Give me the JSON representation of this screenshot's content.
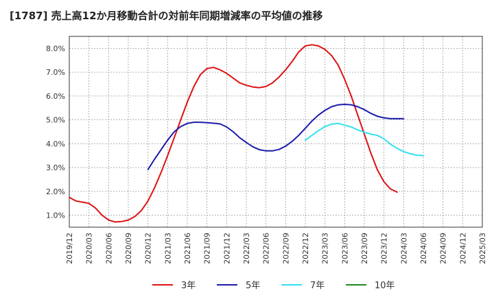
{
  "chart_data": {
    "type": "line",
    "title": "[1787]  売上高12か月移動合計の対前年同期増減率の平均値の推移",
    "xlabel": "",
    "ylabel": "",
    "ylim": [
      0.5,
      8.5
    ],
    "x_ticks": [
      "2019/12",
      "2020/03",
      "2020/06",
      "2020/09",
      "2020/12",
      "2021/03",
      "2021/06",
      "2021/09",
      "2021/12",
      "2022/03",
      "2022/06",
      "2022/09",
      "2022/12",
      "2023/03",
      "2023/06",
      "2023/09",
      "2023/12",
      "2024/03",
      "2024/06",
      "2024/09",
      "2024/12",
      "2025/03"
    ],
    "y_ticks": [
      "1.0%",
      "2.0%",
      "3.0%",
      "4.0%",
      "5.0%",
      "6.0%",
      "7.0%",
      "8.0%"
    ],
    "y_tick_values": [
      1,
      2,
      3,
      4,
      5,
      6,
      7,
      8
    ],
    "grid": true,
    "legend_position": "bottom",
    "series": [
      {
        "name": "3年",
        "color": "#dd1111",
        "start_index": 0,
        "values": [
          1.75,
          1.6,
          1.55,
          1.5,
          1.3,
          1.0,
          0.8,
          0.72,
          0.74,
          0.8,
          0.95,
          1.2,
          1.6,
          2.15,
          2.8,
          3.5,
          4.25,
          5.0,
          5.75,
          6.4,
          6.9,
          7.15,
          7.2,
          7.1,
          6.95,
          6.75,
          6.55,
          6.45,
          6.38,
          6.35,
          6.4,
          6.55,
          6.8,
          7.1,
          7.45,
          7.85,
          8.1,
          8.15,
          8.1,
          7.95,
          7.7,
          7.3,
          6.7,
          6.0,
          5.2,
          4.4,
          3.6,
          2.9,
          2.4,
          2.1,
          1.97
        ]
      },
      {
        "name": "5年",
        "color": "#1a1aaa",
        "start_index": 12,
        "values": [
          2.92,
          3.35,
          3.75,
          4.15,
          4.5,
          4.72,
          4.85,
          4.9,
          4.9,
          4.88,
          4.86,
          4.83,
          4.7,
          4.5,
          4.25,
          4.05,
          3.87,
          3.75,
          3.7,
          3.7,
          3.76,
          3.9,
          4.1,
          4.35,
          4.65,
          4.95,
          5.2,
          5.4,
          5.55,
          5.63,
          5.65,
          5.63,
          5.55,
          5.43,
          5.27,
          5.15,
          5.08,
          5.05,
          5.05,
          5.05
        ]
      },
      {
        "name": "7年",
        "color": "#33e0ee",
        "start_index": 36,
        "values": [
          4.15,
          4.35,
          4.55,
          4.72,
          4.82,
          4.85,
          4.78,
          4.7,
          4.58,
          4.48,
          4.4,
          4.35,
          4.2,
          3.98,
          3.8,
          3.67,
          3.58,
          3.52,
          3.5
        ]
      },
      {
        "name": "10年",
        "color": "#228822",
        "start_index": 0,
        "values": []
      }
    ]
  }
}
